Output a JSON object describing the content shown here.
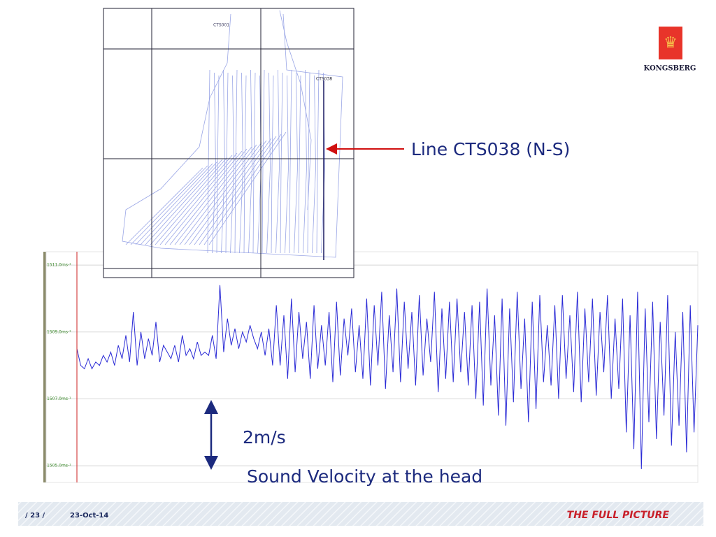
{
  "slide": {
    "annotation": "Line CTS038 (N-S)",
    "scale_label": "2m/s",
    "caption": "Sound Velocity at the head",
    "logo": "KONGSBERG"
  },
  "map": {
    "labels": [
      "CTS001",
      "CTS038"
    ]
  },
  "chart_data": {
    "type": "line",
    "color": "#2b2bd6",
    "ylim": [
      1504.5,
      1511.4
    ],
    "yticks": [
      {
        "value": 1511,
        "label": "1511.0ms-¹"
      },
      {
        "value": 1509,
        "label": "1509.0ms-¹"
      },
      {
        "value": 1507,
        "label": "1507.0ms-¹"
      },
      {
        "value": 1505,
        "label": "1505.0ms-¹"
      }
    ],
    "grid": true,
    "values": [
      1508.5,
      1508.0,
      1507.9,
      1508.2,
      1507.9,
      1508.1,
      1508.0,
      1508.3,
      1508.1,
      1508.4,
      1508.0,
      1508.6,
      1508.2,
      1508.9,
      1508.1,
      1509.6,
      1508.0,
      1509.0,
      1508.2,
      1508.8,
      1508.3,
      1509.3,
      1508.1,
      1508.6,
      1508.4,
      1508.2,
      1508.6,
      1508.1,
      1508.9,
      1508.3,
      1508.5,
      1508.2,
      1508.7,
      1508.3,
      1508.4,
      1508.3,
      1508.9,
      1508.2,
      1510.4,
      1508.4,
      1509.4,
      1508.6,
      1509.1,
      1508.5,
      1509.0,
      1508.7,
      1509.2,
      1508.8,
      1508.5,
      1509.0,
      1508.3,
      1509.1,
      1508.0,
      1509.8,
      1508.0,
      1509.5,
      1507.6,
      1510.0,
      1507.8,
      1509.6,
      1508.2,
      1509.3,
      1507.6,
      1509.8,
      1507.9,
      1509.2,
      1508.0,
      1509.6,
      1507.5,
      1509.9,
      1507.7,
      1509.4,
      1508.3,
      1509.7,
      1507.8,
      1509.2,
      1507.6,
      1510.0,
      1507.4,
      1509.8,
      1508.0,
      1510.2,
      1507.3,
      1509.5,
      1507.8,
      1510.3,
      1507.5,
      1509.9,
      1507.9,
      1509.6,
      1507.4,
      1510.1,
      1507.7,
      1509.4,
      1508.1,
      1510.2,
      1507.2,
      1509.7,
      1507.6,
      1509.9,
      1507.5,
      1510.0,
      1507.8,
      1509.6,
      1507.4,
      1509.8,
      1507.0,
      1509.9,
      1506.8,
      1510.3,
      1507.4,
      1509.5,
      1506.5,
      1510.0,
      1506.2,
      1509.7,
      1506.9,
      1510.2,
      1507.3,
      1509.4,
      1506.3,
      1509.9,
      1506.7,
      1510.1,
      1507.5,
      1509.2,
      1507.4,
      1509.8,
      1507.0,
      1510.1,
      1507.6,
      1509.5,
      1507.2,
      1510.2,
      1506.9,
      1509.7,
      1507.5,
      1510.0,
      1507.1,
      1509.6,
      1507.8,
      1510.1,
      1507.0,
      1509.4,
      1507.3,
      1510.0,
      1506.0,
      1509.5,
      1505.5,
      1510.2,
      1504.9,
      1509.7,
      1506.3,
      1509.9,
      1505.8,
      1509.3,
      1506.5,
      1510.1,
      1505.6,
      1509.0,
      1506.2,
      1509.6,
      1505.4,
      1509.8,
      1506.0,
      1509.2
    ]
  },
  "footer": {
    "page": "/ 23 /",
    "date": "23-Oct-14",
    "tagline": "THE FULL PICTURE"
  }
}
